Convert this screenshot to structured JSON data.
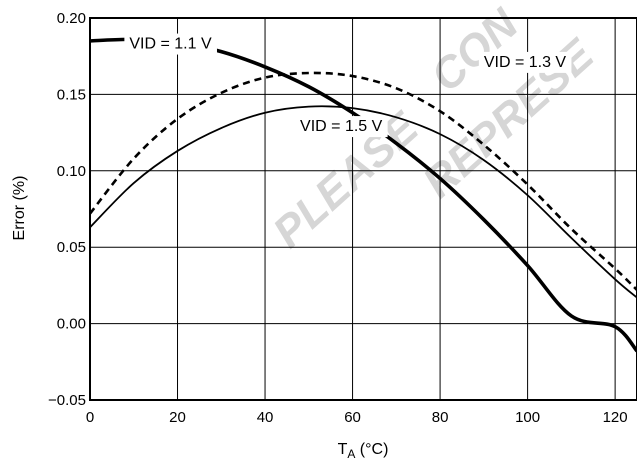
{
  "chart_data": {
    "type": "line",
    "title": "",
    "xlabel": {
      "main": "T",
      "sub": "A",
      "rest": " (°C)"
    },
    "ylabel": "Error (%)",
    "xlim": [
      0,
      125
    ],
    "ylim": [
      -0.05,
      0.2
    ],
    "xticks": [
      0,
      20,
      40,
      60,
      80,
      100,
      120
    ],
    "yticks": [
      -0.05,
      0.0,
      0.05,
      0.1,
      0.15,
      0.2
    ],
    "xtick_labels": [
      "0",
      "20",
      "40",
      "60",
      "80",
      "100",
      "120"
    ],
    "ytick_labels": [
      "−0.05",
      "0.00",
      "0.05",
      "0.10",
      "0.15",
      "0.20"
    ],
    "grid": true,
    "series": [
      {
        "name": "VID = 1.1 V",
        "style": "thick-solid",
        "x": [
          0,
          10,
          20,
          30,
          40,
          50,
          60,
          70,
          80,
          90,
          100,
          110,
          120,
          125
        ],
        "values": [
          0.185,
          0.186,
          0.184,
          0.178,
          0.168,
          0.155,
          0.138,
          0.118,
          0.095,
          0.068,
          0.038,
          0.005,
          -0.002,
          -0.018
        ]
      },
      {
        "name": "VID = 1.3 V",
        "style": "dashed",
        "x": [
          0,
          10,
          20,
          30,
          40,
          50,
          60,
          70,
          80,
          90,
          100,
          110,
          120,
          125
        ],
        "values": [
          0.072,
          0.108,
          0.134,
          0.151,
          0.161,
          0.164,
          0.162,
          0.154,
          0.139,
          0.117,
          0.091,
          0.062,
          0.036,
          0.022
        ]
      },
      {
        "name": "VID = 1.5 V",
        "style": "thin-solid",
        "x": [
          0,
          10,
          20,
          30,
          40,
          50,
          60,
          70,
          80,
          90,
          100,
          110,
          120,
          125
        ],
        "values": [
          0.063,
          0.092,
          0.113,
          0.128,
          0.138,
          0.142,
          0.141,
          0.135,
          0.124,
          0.107,
          0.084,
          0.056,
          0.029,
          0.017
        ]
      }
    ],
    "annotations": [
      {
        "text": "VID = 1.1 V",
        "x": 9,
        "y": 0.18
      },
      {
        "text": "VID = 1.3 V",
        "x": 90,
        "y": 0.168
      },
      {
        "text": "VID = 1.5 V",
        "x": 48,
        "y": 0.126
      }
    ]
  },
  "watermark": [
    "PLEASE",
    "CON",
    "REPRESE"
  ]
}
